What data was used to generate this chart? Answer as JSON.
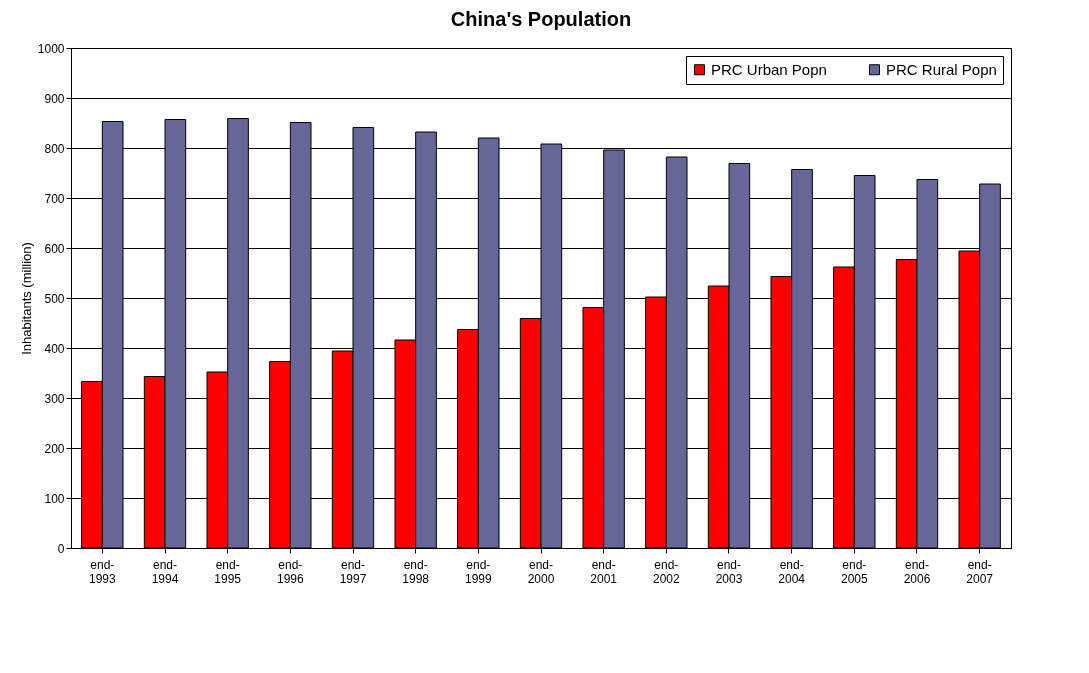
{
  "chart_data": {
    "type": "bar",
    "title": "China's Population",
    "ylabel": "Inhabitants (million)",
    "categories": [
      "end-1993",
      "end-1994",
      "end-1995",
      "end-1996",
      "end-1997",
      "end-1998",
      "end-1999",
      "end-2000",
      "end-2001",
      "end-2002",
      "end-2003",
      "end-2004",
      "end-2005",
      "end-2006",
      "end-2007"
    ],
    "series": [
      {
        "name": "PRC Urban Popn",
        "color": "#ff0000",
        "values": [
          333,
          343,
          352,
          373,
          394,
          416,
          437,
          459,
          481,
          502,
          524,
          543,
          562,
          577,
          594
        ]
      },
      {
        "name": "PRC Rural Popn",
        "color": "#666699",
        "values": [
          853,
          857,
          859,
          851,
          841,
          832,
          820,
          808,
          796,
          782,
          769,
          757,
          745,
          737,
          728
        ]
      }
    ],
    "ylim": [
      0,
      1000
    ],
    "yticks": [
      0,
      100,
      200,
      300,
      400,
      500,
      600,
      700,
      800,
      900,
      1000
    ],
    "grid": true,
    "legend": "top right"
  }
}
